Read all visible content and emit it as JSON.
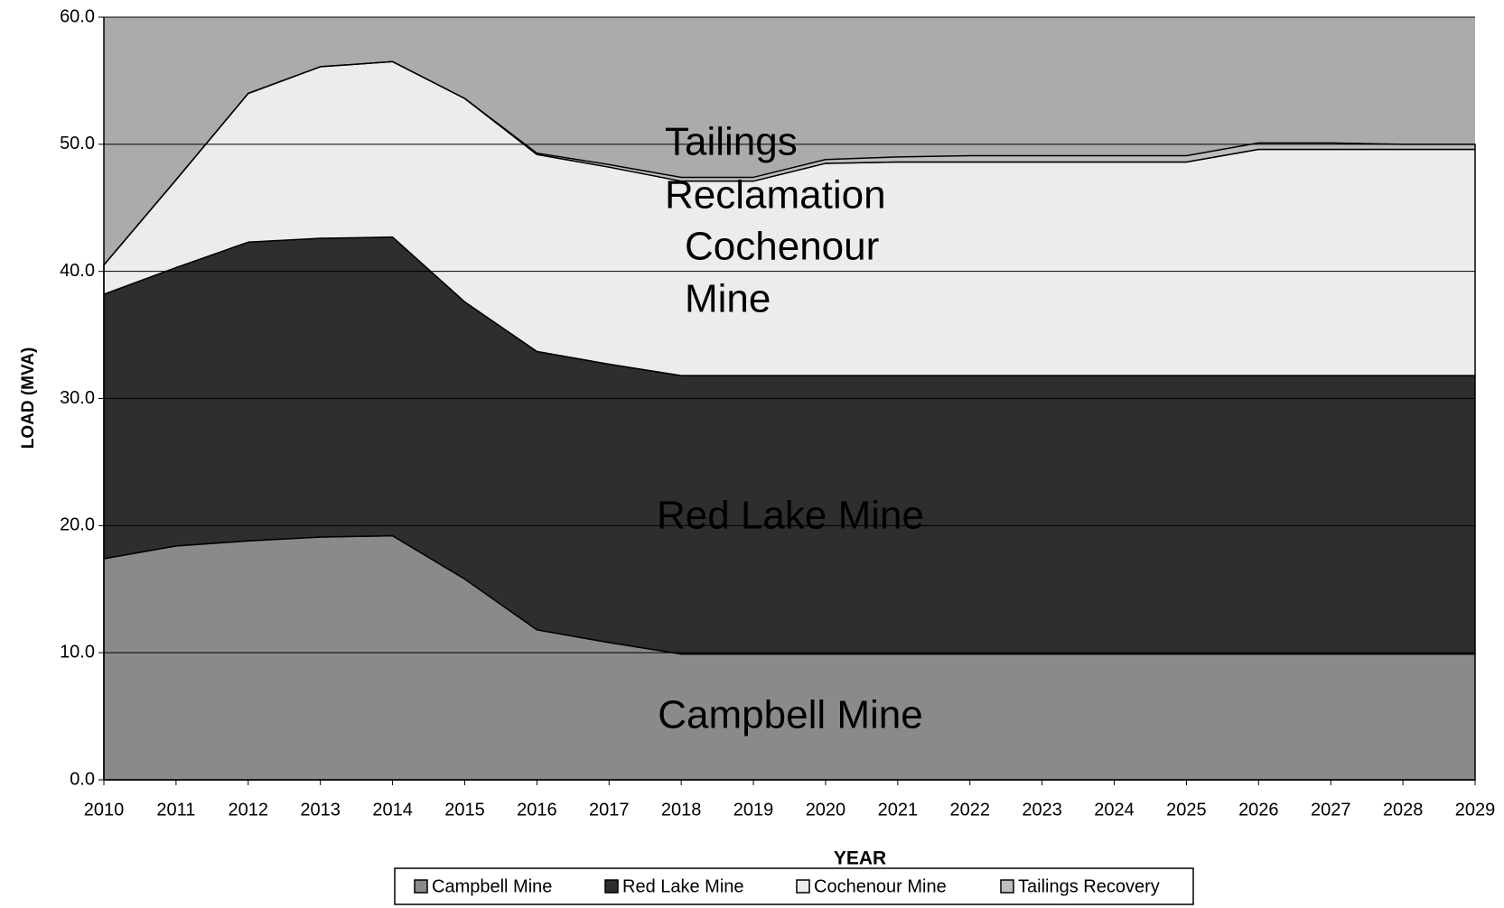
{
  "chart_data": {
    "type": "area",
    "x_label": "YEAR",
    "y_label": "LOAD (MVA)",
    "categories": [
      "2010",
      "2011",
      "2012",
      "2013",
      "2014",
      "2015",
      "2016",
      "2017",
      "2018",
      "2019",
      "2020",
      "2021",
      "2022",
      "2023",
      "2024",
      "2025",
      "2026",
      "2027",
      "2028",
      "2029"
    ],
    "series": [
      {
        "name": "Campbell Mine",
        "color": "#8a8a8a",
        "values": [
          17.4,
          18.4,
          18.8,
          19.1,
          19.2,
          15.8,
          11.8,
          10.8,
          9.9,
          9.9,
          9.9,
          9.9,
          9.9,
          9.9,
          9.9,
          9.9,
          9.9,
          9.9,
          9.9,
          9.9
        ]
      },
      {
        "name": "Red Lake Mine",
        "color": "#2e2e2e",
        "values": [
          20.8,
          21.9,
          23.5,
          23.5,
          23.5,
          21.8,
          21.9,
          21.9,
          21.9,
          21.9,
          21.9,
          21.9,
          21.9,
          21.9,
          21.9,
          21.9,
          21.9,
          21.9,
          21.9,
          21.9
        ]
      },
      {
        "name": "Cochenour Mine",
        "color": "#ececec",
        "values": [
          2.3,
          6.9,
          11.7,
          13.5,
          13.8,
          16.0,
          15.5,
          15.5,
          15.3,
          15.3,
          16.7,
          16.8,
          16.8,
          16.8,
          16.8,
          16.8,
          17.8,
          17.8,
          17.8,
          17.8
        ]
      },
      {
        "name": "Tailings Recovery",
        "color": "#bdbdbd",
        "values": [
          0,
          0,
          0,
          0,
          0,
          0,
          0.1,
          0.2,
          0.3,
          0.3,
          0.3,
          0.4,
          0.5,
          0.5,
          0.5,
          0.5,
          0.5,
          0.5,
          0.4,
          0.4
        ]
      }
    ],
    "annotations": [
      "Tailings",
      "Reclamation",
      "Cochenour",
      "Mine",
      "Red Lake Mine",
      "Campbell Mine"
    ],
    "ylim": [
      0,
      60
    ],
    "yticks": [
      {
        "value": 0,
        "label": "0.0"
      },
      {
        "value": 10,
        "label": "10.0"
      },
      {
        "value": 20,
        "label": "20.0"
      },
      {
        "value": 30,
        "label": "30.0"
      },
      {
        "value": 40,
        "label": "40.0"
      },
      {
        "value": 50,
        "label": "50.0"
      },
      {
        "value": 60,
        "label": "60.0"
      }
    ],
    "plot_background": "#ababab",
    "grid": true,
    "legend": "bottom"
  }
}
